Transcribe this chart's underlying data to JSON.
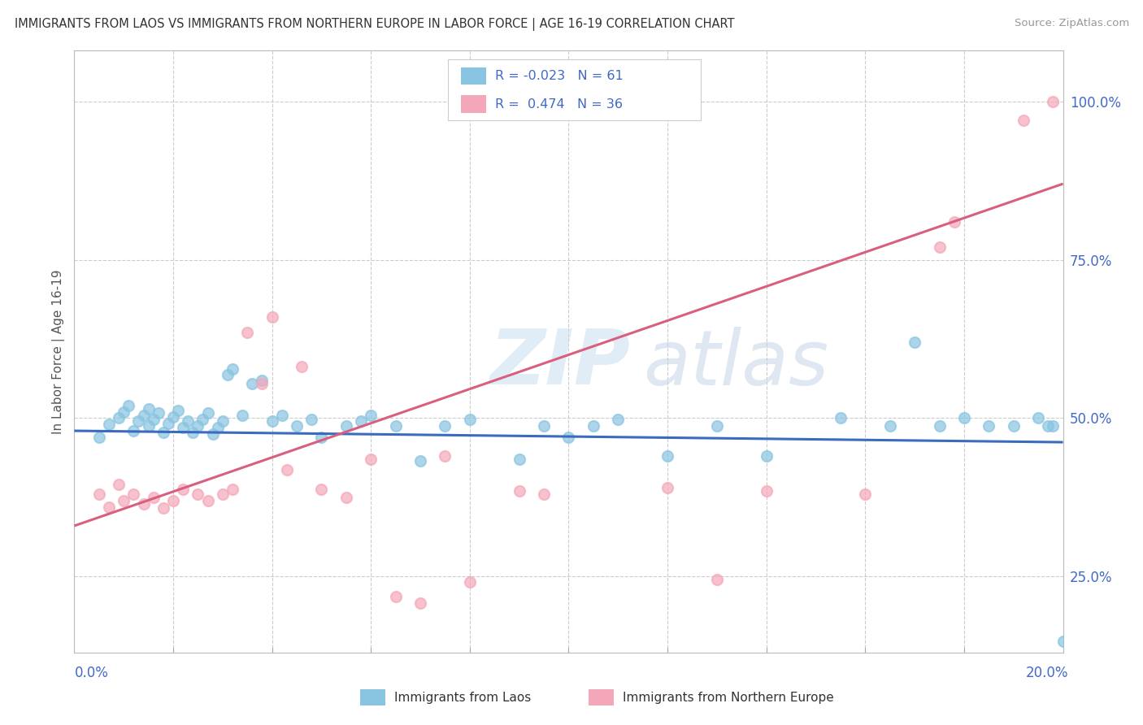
{
  "title": "IMMIGRANTS FROM LAOS VS IMMIGRANTS FROM NORTHERN EUROPE IN LABOR FORCE | AGE 16-19 CORRELATION CHART",
  "source": "Source: ZipAtlas.com",
  "ylabel": "In Labor Force | Age 16-19",
  "legend_label1": "Immigrants from Laos",
  "legend_label2": "Immigrants from Northern Europe",
  "R1": -0.023,
  "N1": 61,
  "R2": 0.474,
  "N2": 36,
  "color_blue": "#89c4e1",
  "color_pink": "#f4a7b9",
  "color_blue_line": "#3a6bbf",
  "color_pink_line": "#d95f7f",
  "watermark_zip": "ZIP",
  "watermark_atlas": "atlas",
  "xmin": 0.0,
  "xmax": 0.2,
  "ymin": 0.13,
  "ymax": 1.08,
  "ytick_vals": [
    0.25,
    0.5,
    0.75,
    1.0
  ],
  "ytick_labels": [
    "25.0%",
    "50.0%",
    "75.0%",
    "100.0%"
  ],
  "blue_scatter_x": [
    0.005,
    0.007,
    0.009,
    0.01,
    0.011,
    0.012,
    0.013,
    0.014,
    0.015,
    0.015,
    0.016,
    0.017,
    0.018,
    0.019,
    0.02,
    0.021,
    0.022,
    0.023,
    0.024,
    0.025,
    0.026,
    0.027,
    0.028,
    0.029,
    0.03,
    0.031,
    0.032,
    0.034,
    0.036,
    0.038,
    0.04,
    0.042,
    0.045,
    0.048,
    0.05,
    0.055,
    0.058,
    0.06,
    0.065,
    0.07,
    0.075,
    0.08,
    0.09,
    0.095,
    0.1,
    0.105,
    0.11,
    0.12,
    0.13,
    0.14,
    0.155,
    0.165,
    0.17,
    0.175,
    0.18,
    0.185,
    0.19,
    0.195,
    0.197,
    0.198,
    0.2
  ],
  "blue_scatter_y": [
    0.47,
    0.49,
    0.5,
    0.51,
    0.52,
    0.48,
    0.495,
    0.505,
    0.515,
    0.488,
    0.498,
    0.508,
    0.478,
    0.492,
    0.502,
    0.512,
    0.485,
    0.495,
    0.478,
    0.488,
    0.498,
    0.508,
    0.475,
    0.485,
    0.495,
    0.568,
    0.578,
    0.505,
    0.555,
    0.56,
    0.495,
    0.505,
    0.488,
    0.498,
    0.47,
    0.488,
    0.495,
    0.505,
    0.488,
    0.432,
    0.488,
    0.498,
    0.435,
    0.488,
    0.47,
    0.488,
    0.498,
    0.44,
    0.488,
    0.44,
    0.5,
    0.488,
    0.62,
    0.488,
    0.5,
    0.488,
    0.488,
    0.5,
    0.488,
    0.488,
    0.148
  ],
  "pink_scatter_x": [
    0.005,
    0.007,
    0.009,
    0.01,
    0.012,
    0.014,
    0.016,
    0.018,
    0.02,
    0.022,
    0.025,
    0.027,
    0.03,
    0.032,
    0.035,
    0.038,
    0.04,
    0.043,
    0.046,
    0.05,
    0.055,
    0.06,
    0.065,
    0.07,
    0.075,
    0.08,
    0.09,
    0.095,
    0.12,
    0.13,
    0.14,
    0.16,
    0.175,
    0.178,
    0.192,
    0.198
  ],
  "pink_scatter_y": [
    0.38,
    0.36,
    0.395,
    0.37,
    0.38,
    0.365,
    0.375,
    0.358,
    0.37,
    0.388,
    0.38,
    0.37,
    0.38,
    0.388,
    0.635,
    0.555,
    0.66,
    0.418,
    0.582,
    0.388,
    0.375,
    0.435,
    0.218,
    0.208,
    0.44,
    0.242,
    0.385,
    0.38,
    0.39,
    0.245,
    0.385,
    0.38,
    0.77,
    0.81,
    0.97,
    1.0
  ],
  "blue_trend_x": [
    0.0,
    0.2
  ],
  "blue_trend_y": [
    0.48,
    0.462
  ],
  "pink_trend_x": [
    0.0,
    0.2
  ],
  "pink_trend_y": [
    0.33,
    0.87
  ]
}
